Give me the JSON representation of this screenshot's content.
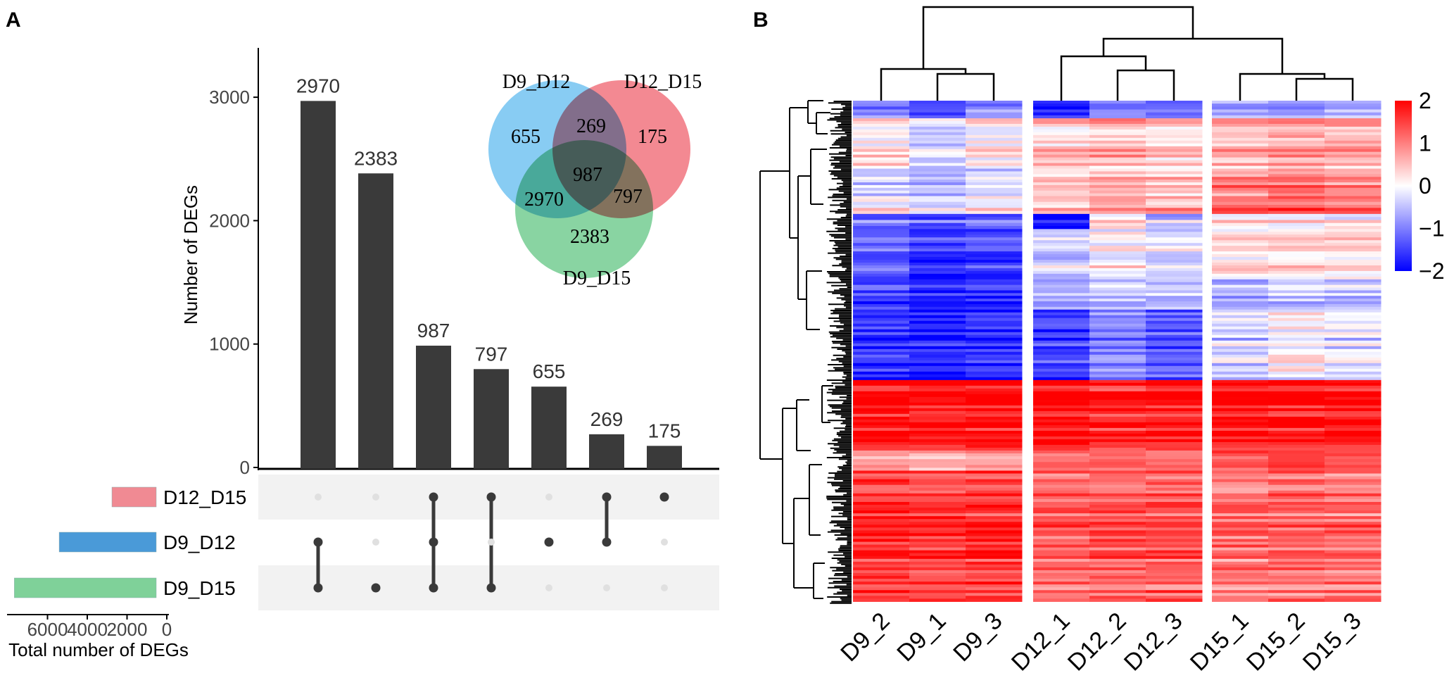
{
  "panels": {
    "a": "A",
    "b": "B"
  },
  "chart_data": [
    {
      "type": "bar",
      "subtype": "upset",
      "ylabel": "Number of DEGs",
      "ylim": [
        0,
        3400
      ],
      "yticks": [
        "0",
        "1000",
        "2000",
        "3000"
      ],
      "yticks_values": [
        0,
        1000,
        2000,
        3000
      ],
      "intersections": [
        {
          "value": 2970,
          "label": "2970",
          "sets": [
            "D9_D12",
            "D9_D15"
          ]
        },
        {
          "value": 2383,
          "label": "2383",
          "sets": [
            "D9_D15"
          ]
        },
        {
          "value": 987,
          "label": "987",
          "sets": [
            "D12_D15",
            "D9_D12",
            "D9_D15"
          ]
        },
        {
          "value": 797,
          "label": "797",
          "sets": [
            "D12_D15",
            "D9_D15"
          ]
        },
        {
          "value": 655,
          "label": "655",
          "sets": [
            "D9_D12"
          ]
        },
        {
          "value": 269,
          "label": "269",
          "sets": [
            "D12_D15",
            "D9_D12"
          ]
        },
        {
          "value": 175,
          "label": "175",
          "sets": [
            "D12_D15"
          ]
        }
      ],
      "sets": [
        {
          "name": "D12_D15",
          "total": 2228,
          "color": "#f08a93"
        },
        {
          "name": "D9_D12",
          "total": 4881,
          "color": "#4a9ad8"
        },
        {
          "name": "D9_D15",
          "total": 7137,
          "color": "#7fd199"
        }
      ],
      "set_size_label": "Total number of DEGs",
      "set_size_ticks": [
        "6000",
        "4000",
        "2000",
        "0"
      ],
      "set_size_ticks_values": [
        6000,
        4000,
        2000,
        0
      ]
    },
    {
      "type": "venn",
      "circles": [
        {
          "name": "D9_D12",
          "color": "#5ab8ee"
        },
        {
          "name": "D12_D15",
          "color": "#ee5c68"
        },
        {
          "name": "D9_D15",
          "color": "#5cc47e"
        }
      ],
      "regions": [
        {
          "label": "655",
          "sets": [
            "D9_D12"
          ]
        },
        {
          "label": "175",
          "sets": [
            "D12_D15"
          ]
        },
        {
          "label": "2383",
          "sets": [
            "D9_D15"
          ]
        },
        {
          "label": "269",
          "sets": [
            "D9_D12",
            "D12_D15"
          ]
        },
        {
          "label": "2970",
          "sets": [
            "D9_D12",
            "D9_D15"
          ]
        },
        {
          "label": "797",
          "sets": [
            "D12_D15",
            "D9_D15"
          ]
        },
        {
          "label": "987",
          "sets": [
            "D9_D12",
            "D12_D15",
            "D9_D15"
          ]
        }
      ]
    },
    {
      "type": "heatmap",
      "columns": [
        "D9_2",
        "D9_1",
        "D9_3",
        "D12_1",
        "D12_2",
        "D12_3",
        "D15_1",
        "D15_2",
        "D15_3"
      ],
      "column_groups": [
        [
          "D9_2",
          "D9_1",
          "D9_3"
        ],
        [
          "D12_1",
          "D12_2",
          "D12_3"
        ],
        [
          "D15_1",
          "D15_2",
          "D15_3"
        ]
      ],
      "colorbar": {
        "range": [
          -2,
          2
        ],
        "labels": [
          "2",
          "1",
          "0",
          "−1",
          "−2"
        ],
        "values": [
          2,
          1,
          0,
          -1,
          -2
        ],
        "low_color": "#0000ff",
        "mid_color": "#ffffff",
        "high_color": "#ff0000"
      },
      "row_blocks": [
        {
          "rows": 0.035,
          "values": [
            -0.9,
            -1.3,
            -0.9,
            -1.6,
            -0.9,
            -1.1,
            -0.6,
            -0.8,
            -0.6
          ]
        },
        {
          "rows": 0.1,
          "values": [
            0.3,
            -0.2,
            0.2,
            0.5,
            0.6,
            0.4,
            0.6,
            0.8,
            0.7
          ]
        },
        {
          "rows": 0.06,
          "values": [
            -0.3,
            -0.5,
            -0.2,
            0.5,
            0.6,
            0.5,
            1.0,
            1.1,
            1.0
          ]
        },
        {
          "rows": 0.03,
          "values": [
            0.2,
            0.0,
            0.2,
            0.6,
            0.9,
            0.8,
            1.4,
            1.5,
            1.3
          ]
        },
        {
          "rows": 0.03,
          "values": [
            -1.1,
            -1.3,
            -1.0,
            -1.8,
            0.3,
            -0.4,
            0.2,
            0.1,
            0.2
          ]
        },
        {
          "rows": 0.1,
          "values": [
            -1.2,
            -1.6,
            -1.5,
            -0.4,
            0.0,
            -0.2,
            0.3,
            0.2,
            0.2
          ]
        },
        {
          "rows": 0.06,
          "values": [
            -1.4,
            -1.7,
            -1.6,
            -0.6,
            -0.4,
            -0.5,
            -0.6,
            -0.4,
            -0.4
          ]
        },
        {
          "rows": 0.14,
          "values": [
            -1.7,
            -1.9,
            -1.8,
            -1.6,
            -1.1,
            -1.4,
            -0.4,
            -0.1,
            -0.3
          ]
        },
        {
          "rows": 0.14,
          "values": [
            1.9,
            1.8,
            1.9,
            1.9,
            1.7,
            1.8,
            1.9,
            1.8,
            1.8
          ]
        },
        {
          "rows": 0.04,
          "values": [
            0.9,
            0.8,
            0.9,
            1.2,
            1.3,
            1.2,
            1.5,
            1.6,
            1.5
          ]
        },
        {
          "rows": 0.26,
          "values": [
            1.6,
            1.5,
            1.6,
            1.2,
            1.3,
            1.3,
            1.1,
            1.2,
            1.1
          ]
        }
      ]
    }
  ]
}
